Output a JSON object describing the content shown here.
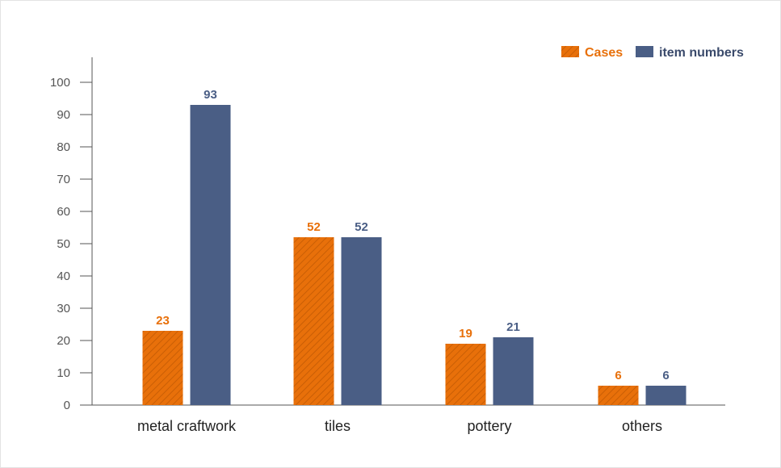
{
  "chart_data": {
    "type": "bar",
    "categories": [
      "metal craftwork",
      "tiles",
      "pottery",
      "others"
    ],
    "series": [
      {
        "name": "Cases",
        "values": [
          23,
          52,
          19,
          6
        ],
        "color": "#e8700a",
        "pattern": "diagonal-hatch"
      },
      {
        "name": "item numbers",
        "values": [
          93,
          52,
          21,
          6
        ],
        "color": "#4a5e85"
      }
    ],
    "ylim": [
      0,
      100
    ],
    "yticks": [
      0,
      10,
      20,
      30,
      40,
      50,
      60,
      70,
      80,
      90,
      100
    ],
    "legend_position": "top-right",
    "grid": false,
    "title": "",
    "xlabel": "",
    "ylabel": ""
  }
}
